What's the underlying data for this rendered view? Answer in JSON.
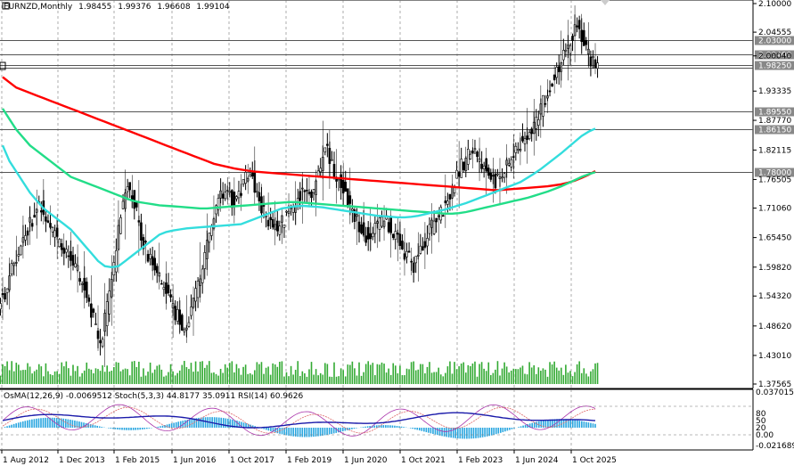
{
  "chart_data": {
    "type": "candlestick",
    "symbol_header": "EURNZD,Monthly",
    "ohlc_header": [
      "1.98455",
      "1.99376",
      "1.96608",
      "1.99104"
    ],
    "main_yaxis": {
      "ticks": [
        "2.10000",
        "2.04555",
        "2.00040",
        "1.93335",
        "1.87770",
        "1.82115",
        "1.76505",
        "1.71060",
        "1.65450",
        "1.59820",
        "1.54320",
        "1.48620",
        "1.43010",
        "1.37565"
      ],
      "ylim": [
        1.37565,
        2.1
      ]
    },
    "price_levels": [
      {
        "label": "2.03000",
        "value": 2.03
      },
      {
        "label": "2.00400",
        "value": 2.004
      },
      {
        "label": "1.98250",
        "value": 1.9825
      },
      {
        "label": "1.89550",
        "value": 1.8955
      },
      {
        "label": "1.86150",
        "value": 1.8615
      },
      {
        "label": "1.78000",
        "value": 1.78
      }
    ],
    "xaxis": {
      "ticks": [
        "1 Aug 2012",
        "1 Dec 2013",
        "1 Feb 2015",
        "1 Jun 2016",
        "1 Oct 2017",
        "1 Feb 2019",
        "1 Jun 2020",
        "1 Oct 2021",
        "1 Feb 2023",
        "1 Jun 2024",
        "1 Oct 2025"
      ]
    },
    "series": [
      {
        "name": "",
        "color": "#ff0000",
        "type": "moving-average",
        "values": [
          1.96,
          1.95,
          1.94,
          1.935,
          1.93,
          1.925,
          1.92,
          1.915,
          1.91,
          1.905,
          1.9,
          1.895,
          1.89,
          1.885,
          1.88,
          1.875,
          1.87,
          1.865,
          1.86,
          1.855,
          1.85,
          1.845,
          1.84,
          1.835,
          1.83,
          1.825,
          1.82,
          1.815,
          1.81,
          1.805,
          1.8,
          1.795,
          1.792,
          1.789,
          1.786,
          1.784,
          1.782,
          1.78,
          1.779,
          1.778,
          1.777,
          1.776,
          1.775,
          1.774,
          1.773,
          1.772,
          1.771,
          1.77,
          1.769,
          1.768,
          1.767,
          1.766,
          1.765,
          1.764,
          1.763,
          1.762,
          1.761,
          1.76,
          1.759,
          1.758,
          1.757,
          1.756,
          1.755,
          1.754,
          1.753,
          1.752,
          1.751,
          1.75,
          1.749,
          1.748,
          1.747,
          1.746,
          1.745,
          1.745,
          1.746,
          1.747,
          1.748,
          1.749,
          1.75,
          1.751,
          1.752,
          1.754,
          1.756,
          1.759,
          1.763,
          1.768,
          1.774,
          1.781
        ]
      },
      {
        "name": "",
        "color": "#22dd88",
        "type": "moving-average",
        "values": [
          1.9,
          1.88,
          1.86,
          1.845,
          1.83,
          1.82,
          1.81,
          1.8,
          1.79,
          1.78,
          1.77,
          1.765,
          1.76,
          1.755,
          1.75,
          1.745,
          1.74,
          1.735,
          1.73,
          1.725,
          1.722,
          1.72,
          1.718,
          1.716,
          1.715,
          1.714,
          1.713,
          1.712,
          1.711,
          1.71,
          1.71,
          1.711,
          1.712,
          1.713,
          1.714,
          1.715,
          1.716,
          1.717,
          1.718,
          1.719,
          1.72,
          1.721,
          1.722,
          1.722,
          1.721,
          1.72,
          1.719,
          1.718,
          1.717,
          1.716,
          1.715,
          1.714,
          1.713,
          1.712,
          1.711,
          1.71,
          1.709,
          1.708,
          1.707,
          1.706,
          1.705,
          1.704,
          1.703,
          1.702,
          1.701,
          1.7,
          1.7,
          1.701,
          1.703,
          1.706,
          1.709,
          1.712,
          1.715,
          1.718,
          1.721,
          1.724,
          1.727,
          1.73,
          1.734,
          1.738,
          1.742,
          1.747,
          1.752,
          1.758,
          1.764,
          1.77,
          1.775,
          1.779
        ]
      },
      {
        "name": "",
        "color": "#33dddd",
        "type": "moving-average",
        "values": [
          1.83,
          1.8,
          1.78,
          1.76,
          1.74,
          1.725,
          1.71,
          1.7,
          1.69,
          1.68,
          1.67,
          1.655,
          1.64,
          1.625,
          1.61,
          1.6,
          1.598,
          1.6,
          1.61,
          1.62,
          1.63,
          1.64,
          1.65,
          1.66,
          1.665,
          1.668,
          1.67,
          1.672,
          1.673,
          1.674,
          1.675,
          1.676,
          1.677,
          1.678,
          1.679,
          1.68,
          1.685,
          1.69,
          1.695,
          1.7,
          1.705,
          1.71,
          1.712,
          1.714,
          1.715,
          1.714,
          1.713,
          1.712,
          1.71,
          1.708,
          1.706,
          1.704,
          1.702,
          1.7,
          1.698,
          1.696,
          1.695,
          1.694,
          1.693,
          1.693,
          1.694,
          1.696,
          1.699,
          1.702,
          1.705,
          1.708,
          1.712,
          1.716,
          1.72,
          1.725,
          1.73,
          1.735,
          1.74,
          1.745,
          1.75,
          1.755,
          1.76,
          1.768,
          1.776,
          1.785,
          1.795,
          1.805,
          1.815,
          1.826,
          1.837,
          1.848,
          1.856,
          1.862
        ]
      }
    ],
    "candles_note": "",
    "closes": [
      1.55,
      1.6,
      1.63,
      1.66,
      1.69,
      1.72,
      1.7,
      1.67,
      1.64,
      1.62,
      1.6,
      1.58,
      1.55,
      1.5,
      1.45,
      1.52,
      1.6,
      1.7,
      1.76,
      1.72,
      1.66,
      1.62,
      1.6,
      1.57,
      1.54,
      1.51,
      1.49,
      1.5,
      1.55,
      1.6,
      1.66,
      1.72,
      1.74,
      1.73,
      1.72,
      1.76,
      1.78,
      1.74,
      1.7,
      1.68,
      1.67,
      1.69,
      1.71,
      1.73,
      1.75,
      1.73,
      1.77,
      1.83,
      1.79,
      1.76,
      1.74,
      1.7,
      1.68,
      1.66,
      1.67,
      1.68,
      1.69,
      1.66,
      1.64,
      1.62,
      1.6,
      1.63,
      1.66,
      1.68,
      1.7,
      1.73,
      1.76,
      1.79,
      1.81,
      1.82,
      1.8,
      1.78,
      1.76,
      1.78,
      1.8,
      1.82,
      1.84,
      1.86,
      1.88,
      1.91,
      1.94,
      1.97,
      2.0,
      2.03,
      2.06,
      2.03,
      1.99,
      1.991
    ],
    "subwindow": {
      "header": "OsMA(12,26,9) -0.0069512  Stoch(5,3,3) 44.8177 35.0911  RSI(14) 60.9626",
      "yaxis": [
        "0.037015",
        "80",
        "50",
        "20",
        "0.00",
        "-0.021689"
      ]
    }
  }
}
